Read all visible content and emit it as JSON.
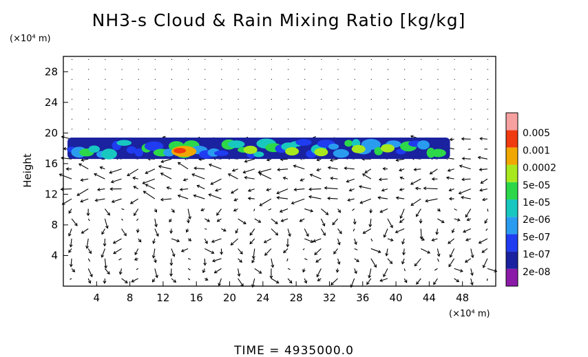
{
  "chart_data": {
    "type": "heatmap",
    "title": "NH3-s Cloud & Rain Mixing Ratio [kg/kg]",
    "ylabel": "Height",
    "y_unit": "(×10⁴ m)",
    "x_unit": "(×10⁴ m)",
    "xlim": [
      0,
      52
    ],
    "ylim": [
      0,
      30
    ],
    "x_ticks": [
      "4",
      "8",
      "12",
      "16",
      "20",
      "24",
      "28",
      "32",
      "36",
      "40",
      "44",
      "48"
    ],
    "y_ticks": [
      "4",
      "8",
      "12",
      "16",
      "20",
      "24",
      "28"
    ],
    "colorbar": {
      "labels": [
        "2e-08",
        "1e-07",
        "5e-07",
        "2e-06",
        "1e-05",
        "5e-05",
        "0.0002",
        "0.001",
        "0.005"
      ],
      "colors": [
        "#8B1AA8",
        "#1A22A0",
        "#1F3CF0",
        "#2A9CF0",
        "#18C8C0",
        "#2CD84A",
        "#A8E81E",
        "#F0A800",
        "#F03A10",
        "#F7A0A0"
      ]
    },
    "cloud_layer": {
      "bottom_km_x10": 16.6,
      "top_km_x10": 19.4,
      "extent_x": [
        0.5,
        46.5
      ],
      "max_region_x": [
        13,
        16
      ],
      "max_value": "0.001"
    },
    "footer": "TIME  =  4935000.0"
  }
}
